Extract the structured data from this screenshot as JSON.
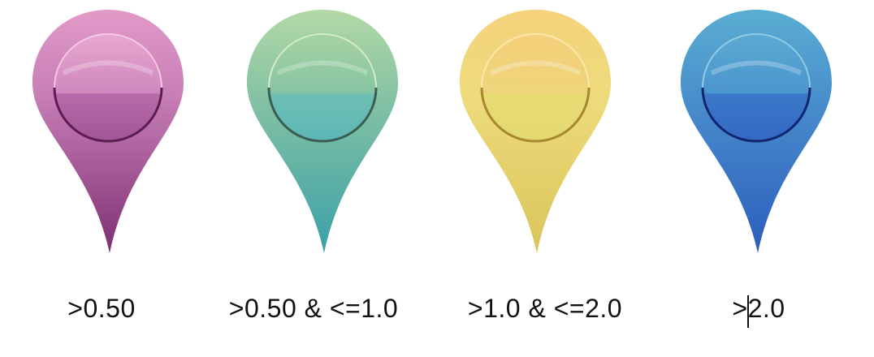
{
  "legend": [
    {
      "label": ">0.50",
      "icon": "map-pin-icon",
      "color_top": "#d98bbd",
      "color_mid": "#b56aa8",
      "color_bottom": "#8a3a7c",
      "ring": "#5c1e52"
    },
    {
      "label": ">0.50 & <=1.0",
      "icon": "map-pin-icon",
      "color_top": "#a8d2a0",
      "color_mid": "#6bbcb6",
      "color_bottom": "#3fa3a8",
      "ring": "#3a5f52"
    },
    {
      "label": ">1.0 & <=2.0",
      "icon": "map-pin-icon",
      "color_top": "#f3d67f",
      "color_mid": "#e8dc76",
      "color_bottom": "#dcc95a",
      "ring": "#a8872e"
    },
    {
      "label": ">2.0",
      "icon": "map-pin-icon",
      "color_top": "#5aa9cf",
      "color_mid": "#3a7cc7",
      "color_bottom": "#2f5fbf",
      "ring": "#0f2670"
    }
  ]
}
